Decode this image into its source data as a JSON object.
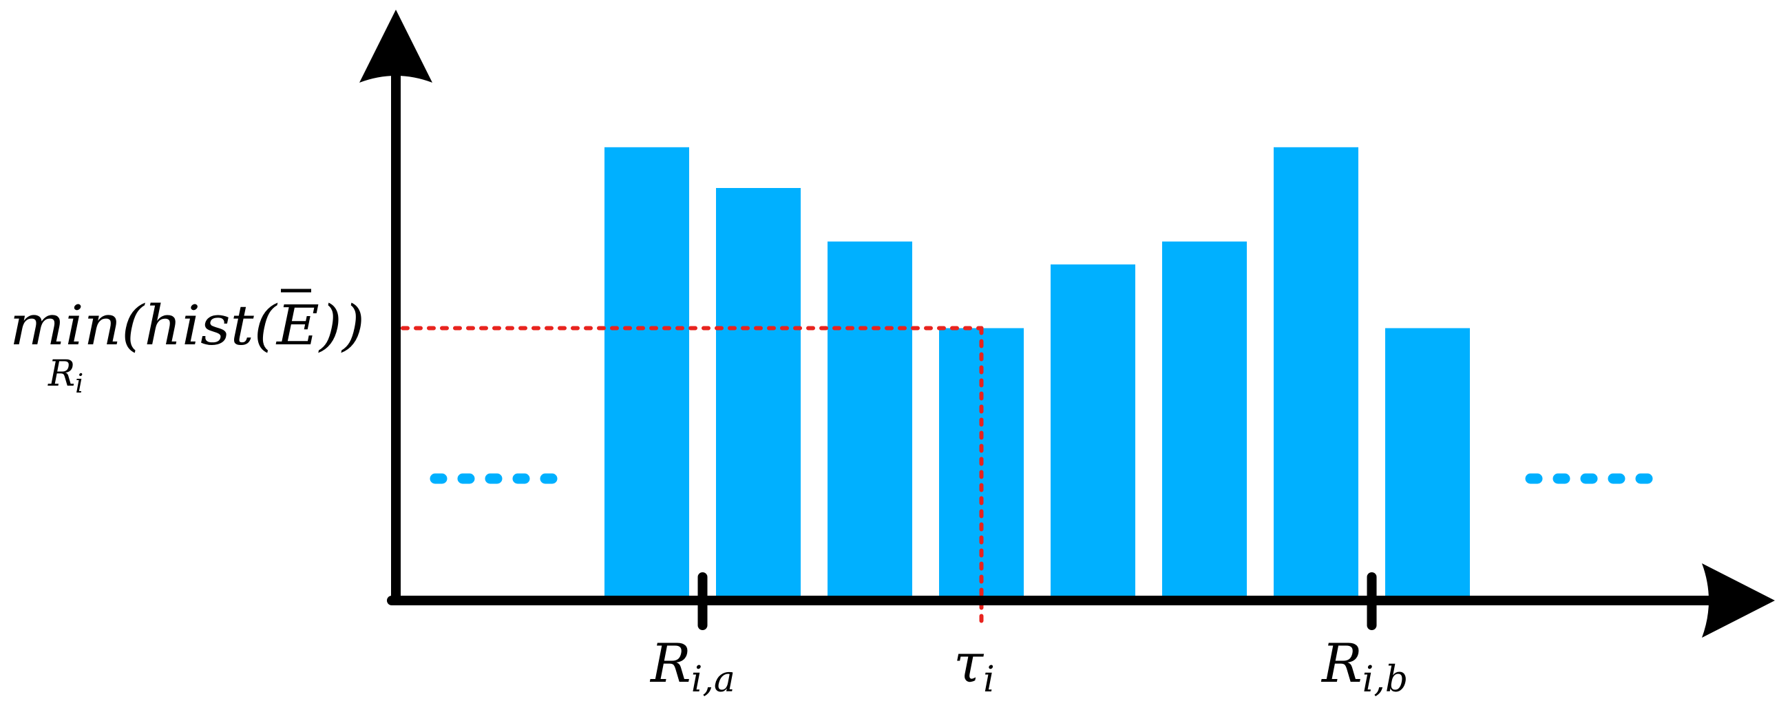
{
  "diagram": {
    "bar_heights": [
      0.88,
      0.8,
      0.695,
      0.525,
      0.65,
      0.695,
      0.88,
      0.525
    ],
    "threshold_level": 0.525,
    "threshold_bar_index": 3,
    "tick_a_gap_index": 0,
    "tick_b_gap_index": 6,
    "colors": {
      "bar": "#00b0ff",
      "axis": "#000000",
      "threshold_line": "#e8231e",
      "ellipsis": "#00b0ff"
    }
  },
  "labels": {
    "y_label_main": "min(hist(E))",
    "y_label_overline_char": "E",
    "y_label_sub_base": "R",
    "y_label_sub_index": "i",
    "tick_a_base": "R",
    "tick_a_sub": "i,a",
    "tau_base": "τ",
    "tau_sub": "i",
    "tick_b_base": "R",
    "tick_b_sub": "i,b"
  },
  "ellipsis_left": {
    "icon": "dotted-ellipsis-icon"
  },
  "ellipsis_right": {
    "icon": "dotted-ellipsis-icon"
  }
}
